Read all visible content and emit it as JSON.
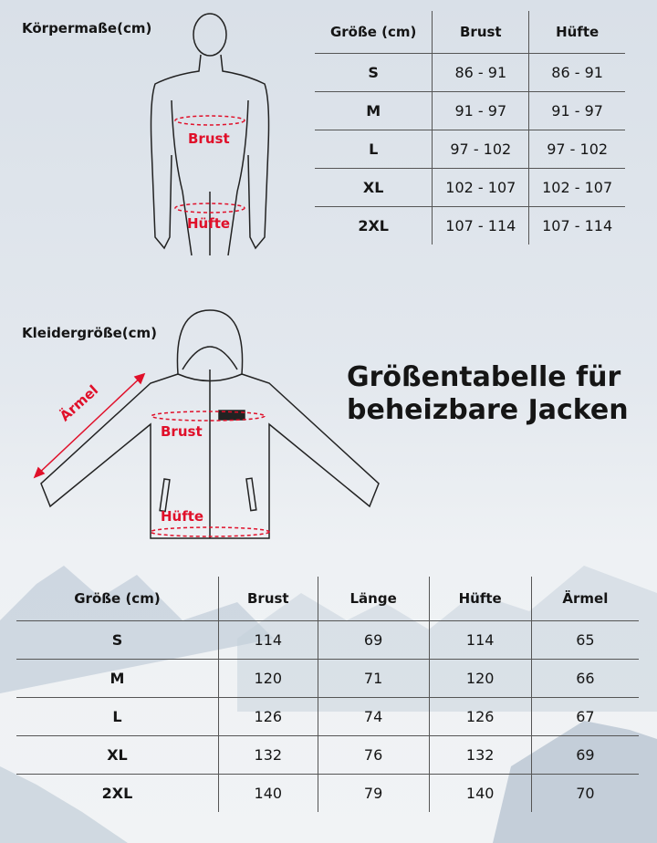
{
  "body_section": {
    "heading": "Körpermaße(cm)",
    "labels": {
      "chest": "Brust",
      "hip": "Hüfte"
    },
    "table": {
      "headers": [
        "Größe (cm)",
        "Brust",
        "Hüfte"
      ],
      "rows": [
        [
          "S",
          "86 - 91",
          "86 - 91"
        ],
        [
          "M",
          "91 - 97",
          "91 - 97"
        ],
        [
          "L",
          "97 - 102",
          "97 - 102"
        ],
        [
          "XL",
          "102 - 107",
          "102 - 107"
        ],
        [
          "2XL",
          "107 - 114",
          "107 - 114"
        ]
      ]
    }
  },
  "garment_section": {
    "heading": "Kleidergröße(cm)",
    "labels": {
      "sleeve": "Ärmel",
      "chest": "Brust",
      "hip": "Hüfte"
    },
    "table": {
      "headers": [
        "Größe (cm)",
        "Brust",
        "Länge",
        "Hüfte",
        "Ärmel"
      ],
      "rows": [
        [
          "S",
          "114",
          "69",
          "114",
          "65"
        ],
        [
          "M",
          "120",
          "71",
          "120",
          "66"
        ],
        [
          "L",
          "126",
          "74",
          "126",
          "67"
        ],
        [
          "XL",
          "132",
          "76",
          "132",
          "69"
        ],
        [
          "2XL",
          "140",
          "79",
          "140",
          "70"
        ]
      ]
    }
  },
  "title": {
    "line1": "Größentabelle für",
    "line2": "beheizbare Jacken"
  },
  "colors": {
    "accent": "#e0102a",
    "text": "#151515"
  }
}
